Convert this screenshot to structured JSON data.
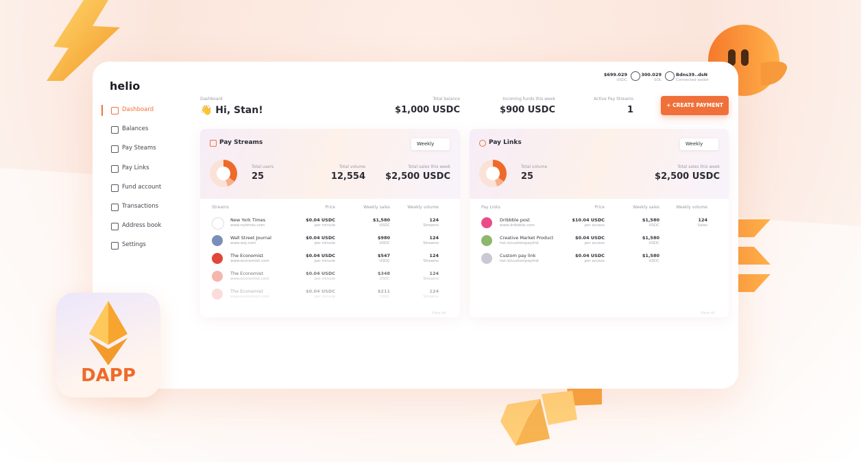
{
  "logo": "helio",
  "wallet": {
    "balances": [
      {
        "amount": "$699.029",
        "unit": "USDC"
      },
      {
        "amount": "300.029",
        "unit": "SOL"
      }
    ],
    "address": "Bdns39..dsN",
    "status": "Connected wallet"
  },
  "nav": [
    "Dashboard",
    "Balances",
    "Pay Steams",
    "Pay Links",
    "Fund account",
    "Transactions",
    "Address book",
    "Settings"
  ],
  "header": {
    "breadcrumb": "Dashboard",
    "greeting": "👋 Hi, Stan!",
    "stats": [
      {
        "label": "Total balance",
        "value": "$1,000 USDC"
      },
      {
        "label": "Incoming funds this week",
        "value": "$900 USDC"
      },
      {
        "label": "Active Pay Streams",
        "value": "1"
      }
    ],
    "button": "CREATE PAYMENT"
  },
  "cards": [
    {
      "title": "Pay Streams",
      "period": "Weekly",
      "stats": [
        {
          "label": "Total users",
          "value": "25"
        },
        {
          "label": "Total volume",
          "value": "12,554"
        },
        {
          "label": "Total sales this week",
          "value": "$2,500 USDC"
        }
      ],
      "columns": [
        "Streams",
        "Price",
        "Weekly sales",
        "Weekly volume"
      ],
      "rows": [
        {
          "name": "New York Times",
          "url": "www.nytimes.com",
          "price": "$0.04 USDC",
          "price_unit": "per minute",
          "sales": "$1,580",
          "sales_unit": "USDC",
          "volume": "124",
          "volume_unit": "Streams"
        },
        {
          "name": "Wall Street Journal",
          "url": "www.wsj.com",
          "price": "$0.04 USDC",
          "price_unit": "per minute",
          "sales": "$980",
          "sales_unit": "USDC",
          "volume": "124",
          "volume_unit": "Streams"
        },
        {
          "name": "The Economist",
          "url": "www.economist.com",
          "price": "$0.04 USDC",
          "price_unit": "per minute",
          "sales": "$547",
          "sales_unit": "USDC",
          "volume": "124",
          "volume_unit": "Streams"
        },
        {
          "name": "The Economist",
          "url": "www.economist.com",
          "price": "$0.04 USDC",
          "price_unit": "per minute",
          "sales": "$348",
          "sales_unit": "USDC",
          "volume": "124",
          "volume_unit": "Streams"
        },
        {
          "name": "The Economist",
          "url": "www.economist.com",
          "price": "$0.04 USDC",
          "price_unit": "per minute",
          "sales": "$211",
          "sales_unit": "USDC",
          "volume": "124",
          "volume_unit": "Streams"
        }
      ],
      "footer": "View all"
    },
    {
      "title": "Pay Links",
      "period": "Weekly",
      "stats": [
        {
          "label": "Total volume",
          "value": "25"
        },
        {
          "label": "Total sales this week",
          "value": "$2,500 USDC"
        }
      ],
      "columns": [
        "Pay Links",
        "Price",
        "Weekly sales",
        "Weekly volume"
      ],
      "rows": [
        {
          "name": "Dribbble post",
          "url": "www.dribbble.com",
          "price": "$10.04 USDC",
          "price_unit": "per access",
          "sales": "$1,580",
          "sales_unit": "USDC",
          "volume": "124",
          "volume_unit": "Sales"
        },
        {
          "name": "Creative Market Product",
          "url": "hel.io/custompaylink",
          "price": "$0.04 USDC",
          "price_unit": "per access",
          "sales": "$1,580",
          "sales_unit": "USDC"
        },
        {
          "name": "Custom pay link",
          "url": "hel.io/custompaylink",
          "price": "$0.04 USDC",
          "price_unit": "per access",
          "sales": "$1,580",
          "sales_unit": "USDC"
        }
      ],
      "footer": "View all"
    }
  ],
  "badge": "DAPP"
}
